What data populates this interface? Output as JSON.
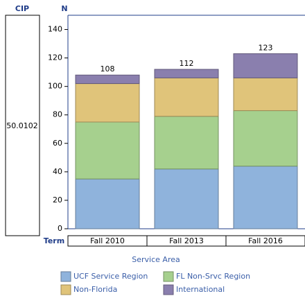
{
  "row_header": {
    "label": "CIP",
    "value": "50.0102"
  },
  "chart_data": {
    "type": "bar",
    "stacked": true,
    "y_label": "N",
    "x_label": "Term",
    "legend_title": "Service Area",
    "categories": [
      "Fall 2010",
      "Fall 2013",
      "Fall 2016"
    ],
    "series": [
      {
        "name": "UCF Service Region",
        "color": "#8fb3dc",
        "values": [
          35,
          42,
          44
        ]
      },
      {
        "name": "FL Non-Srvc Region",
        "color": "#a6d08e",
        "values": [
          40,
          37,
          39
        ]
      },
      {
        "name": "Non-Florida",
        "color": "#e0c47a",
        "values": [
          27,
          27,
          23
        ]
      },
      {
        "name": "International",
        "color": "#8a7fae",
        "values": [
          6,
          6,
          17
        ]
      }
    ],
    "totals": [
      108,
      112,
      123
    ],
    "ylim": [
      0,
      150
    ],
    "yticks": [
      0,
      20,
      40,
      60,
      80,
      100,
      120,
      140
    ]
  }
}
